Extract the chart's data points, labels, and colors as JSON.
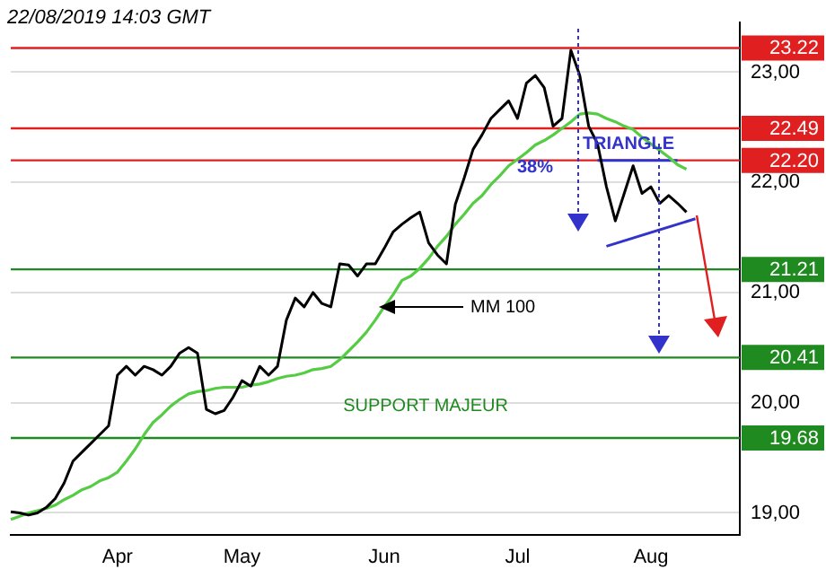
{
  "chart_data": {
    "type": "line",
    "categories": [
      null,
      null,
      null,
      null,
      null,
      null,
      null,
      null,
      null,
      null,
      null,
      null,
      "Apr",
      null,
      null,
      null,
      null,
      null,
      null,
      null,
      null,
      null,
      null,
      null,
      null,
      null,
      "May",
      null,
      null,
      null,
      null,
      null,
      null,
      null,
      null,
      null,
      null,
      null,
      null,
      null,
      null,
      null,
      "Jun",
      null,
      null,
      null,
      null,
      null,
      null,
      null,
      null,
      null,
      null,
      null,
      null,
      null,
      null,
      "Jul",
      null,
      null,
      null,
      null,
      null,
      null,
      null,
      null,
      null,
      null,
      null,
      null,
      null,
      null,
      "Aug",
      null,
      null,
      null,
      null,
      null,
      null,
      null,
      null,
      null,
      null
    ],
    "series": [
      {
        "color": "#000000",
        "values": [
          19.01,
          19.0,
          18.98,
          19.0,
          19.05,
          19.13,
          19.27,
          19.47,
          19.55,
          19.63,
          19.71,
          19.79,
          20.25,
          20.33,
          20.25,
          20.33,
          20.3,
          20.25,
          20.33,
          20.45,
          20.5,
          20.45,
          19.94,
          19.9,
          19.93,
          20.05,
          20.2,
          20.15,
          20.33,
          20.25,
          20.33,
          20.75,
          20.95,
          20.87,
          21.0,
          20.9,
          20.87,
          21.26,
          21.25,
          21.15,
          21.26,
          21.26,
          21.4,
          21.55,
          21.62,
          21.68,
          21.73,
          21.45,
          21.34,
          21.26,
          21.8,
          22.04,
          22.3,
          22.43,
          22.58,
          22.66,
          22.74,
          22.58,
          22.9,
          22.97,
          22.86,
          22.51,
          22.58,
          23.2,
          22.97,
          22.51,
          22.35,
          21.96,
          21.65,
          21.9,
          22.15,
          21.9,
          21.96,
          21.81,
          21.88,
          21.81,
          21.73,
          null,
          null,
          null,
          null,
          null,
          null
        ]
      },
      {
        "name": "MM 100",
        "color": "#55cc44",
        "values": [
          18.94,
          18.97,
          19.0,
          19.02,
          19.04,
          19.07,
          19.12,
          19.16,
          19.21,
          19.24,
          19.29,
          19.32,
          19.37,
          19.47,
          19.58,
          19.71,
          19.82,
          19.89,
          19.97,
          20.03,
          20.08,
          20.1,
          20.11,
          20.13,
          20.14,
          20.14,
          20.14,
          20.16,
          20.17,
          20.19,
          20.22,
          20.24,
          20.25,
          20.27,
          20.3,
          20.31,
          20.33,
          20.39,
          20.47,
          20.55,
          20.64,
          20.75,
          20.87,
          20.98,
          21.11,
          21.15,
          21.22,
          21.31,
          21.42,
          21.51,
          21.62,
          21.71,
          21.81,
          21.88,
          21.98,
          22.06,
          22.15,
          22.21,
          22.27,
          22.34,
          22.38,
          22.43,
          22.49,
          22.55,
          22.62,
          22.63,
          22.62,
          22.58,
          22.55,
          22.51,
          22.48,
          22.41,
          22.35,
          22.29,
          22.23,
          22.16,
          22.12,
          null,
          null,
          null,
          null,
          null,
          null
        ]
      },
      {
        "color": "#3333cc",
        "values": [
          null,
          null,
          null,
          null,
          null,
          null,
          null,
          null,
          null,
          null,
          null,
          null,
          null,
          null,
          null,
          null,
          null,
          null,
          null,
          null,
          null,
          null,
          null,
          null,
          null,
          null,
          null,
          null,
          null,
          null,
          null,
          null,
          null,
          null,
          null,
          null,
          null,
          null,
          null,
          null,
          null,
          null,
          null,
          null,
          null,
          null,
          null,
          null,
          null,
          null,
          null,
          null,
          null,
          null,
          null,
          null,
          null,
          null,
          null,
          null,
          null,
          null,
          null,
          null,
          null,
          null,
          null,
          21.42,
          null,
          null,
          null,
          null,
          null,
          null,
          null,
          null,
          null,
          21.67,
          null,
          null,
          null,
          null,
          null
        ]
      },
      {
        "color": "#3333cc",
        "values": [
          null,
          null,
          null,
          null,
          null,
          null,
          null,
          null,
          null,
          null,
          null,
          null,
          null,
          null,
          null,
          null,
          null,
          null,
          null,
          null,
          null,
          null,
          null,
          null,
          null,
          null,
          null,
          null,
          null,
          null,
          null,
          null,
          null,
          null,
          null,
          null,
          null,
          null,
          null,
          null,
          null,
          null,
          null,
          null,
          null,
          null,
          null,
          null,
          null,
          null,
          null,
          null,
          null,
          null,
          null,
          null,
          null,
          null,
          null,
          null,
          null,
          null,
          null,
          null,
          null,
          null,
          22.2,
          null,
          null,
          null,
          null,
          null,
          null,
          null,
          null,
          22.2,
          null,
          null,
          null,
          null,
          null,
          null,
          null
        ]
      }
    ],
    "ylim": [
      18.8,
      23.45
    ],
    "yticks": [
      {
        "value": 19,
        "label": "19,00"
      },
      {
        "value": 20,
        "label": "20,00"
      },
      {
        "value": 21,
        "label": "21,00"
      },
      {
        "value": 22,
        "label": "22,00"
      },
      {
        "value": 23,
        "label": "23,00"
      }
    ],
    "grid": "y",
    "ref_lines": [
      {
        "axis": "y",
        "value": 23.22,
        "label": "23.22",
        "color": "#e02020"
      },
      {
        "axis": "y",
        "value": 22.49,
        "label": "22.49",
        "color": "#e02020"
      },
      {
        "axis": "y",
        "value": 22.2,
        "label": "22.20",
        "color": "#e02020"
      },
      {
        "axis": "y",
        "value": 21.21,
        "label": "21.21",
        "color": "#1f8a1f"
      },
      {
        "axis": "y",
        "value": 20.41,
        "label": "20.41",
        "color": "#1f8a1f"
      },
      {
        "axis": "y",
        "value": 19.68,
        "label": "19.68",
        "color": "#1f8a1f"
      }
    ],
    "annotations": [
      "22/08/2019 14:03 GMT",
      {
        "text": "TRIANGLE",
        "y": 22.2
      },
      "38%",
      "SUPPORT MAJEUR"
    ]
  }
}
